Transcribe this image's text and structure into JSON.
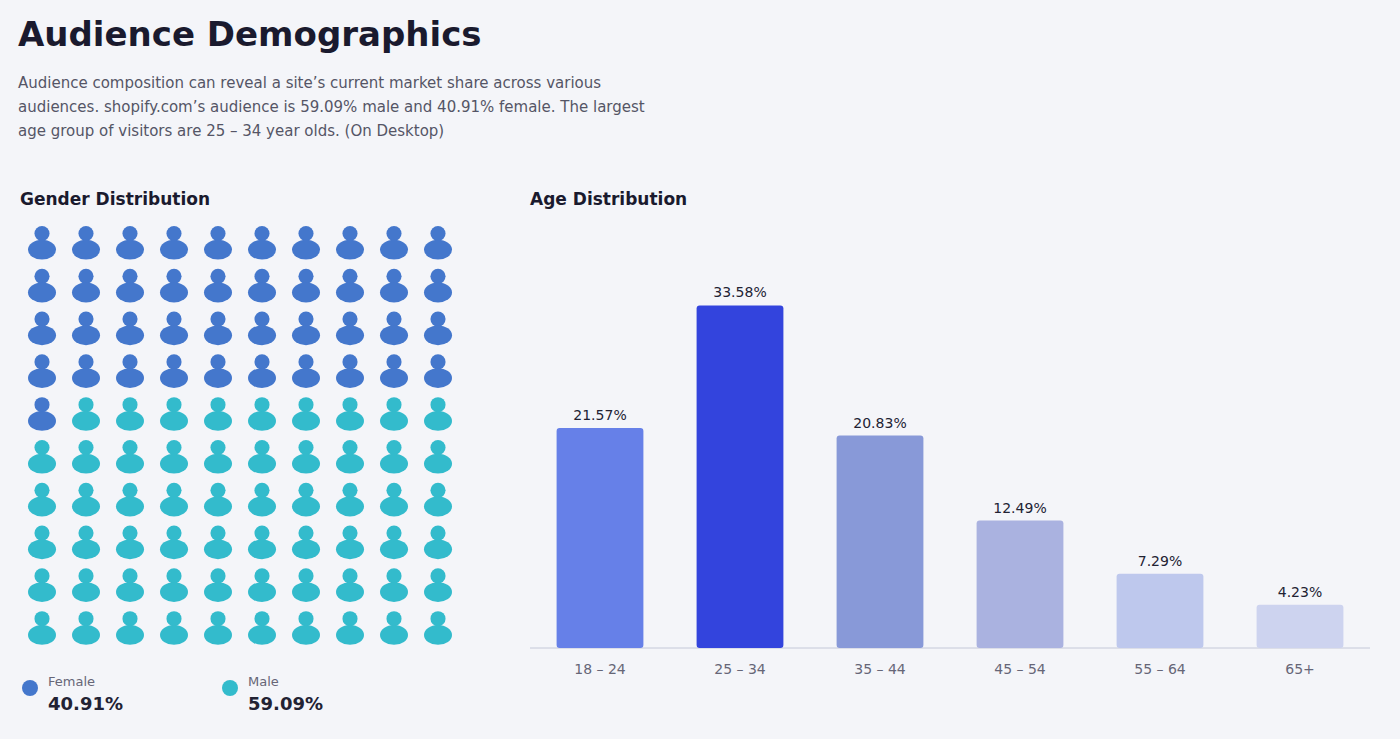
{
  "title": "Audience Demographics",
  "subtitle": "Audience composition can reveal a site’s current market share across various\naudiences. shopify.com’s audience is 59.09% male and 40.91% female. The largest\nage group of visitors are 25 – 34 year olds. (On Desktop)",
  "chart_data": [
    {
      "type": "waffle",
      "title": "Gender Distribution",
      "categories": [
        "Female",
        "Male"
      ],
      "values": [
        40.91,
        59.09
      ],
      "value_labels": [
        "40.91%",
        "59.09%"
      ],
      "counts": [
        41,
        59
      ],
      "colors": [
        "#4477cc",
        "#33bbcc"
      ],
      "data_labels": true,
      "legend": "bottom"
    },
    {
      "type": "bar",
      "title": "Age Distribution",
      "categories": [
        "18 – 24",
        "25 – 34",
        "35 – 44",
        "45 – 54",
        "55 – 64",
        "65+"
      ],
      "values": [
        21.57,
        33.58,
        20.83,
        12.49,
        7.29,
        4.23
      ],
      "value_labels": [
        "21.57%",
        "33.58%",
        "20.83%",
        "12.49%",
        "7.29%",
        "4.23%"
      ],
      "colors": [
        "#6680e8",
        "#3344dd",
        "#8899d8",
        "#aab2e0",
        "#bec8ed",
        "#cdd3ef"
      ],
      "ylim": [
        0,
        40
      ],
      "tick_labels": "x",
      "grid": false,
      "data_labels": true
    }
  ]
}
